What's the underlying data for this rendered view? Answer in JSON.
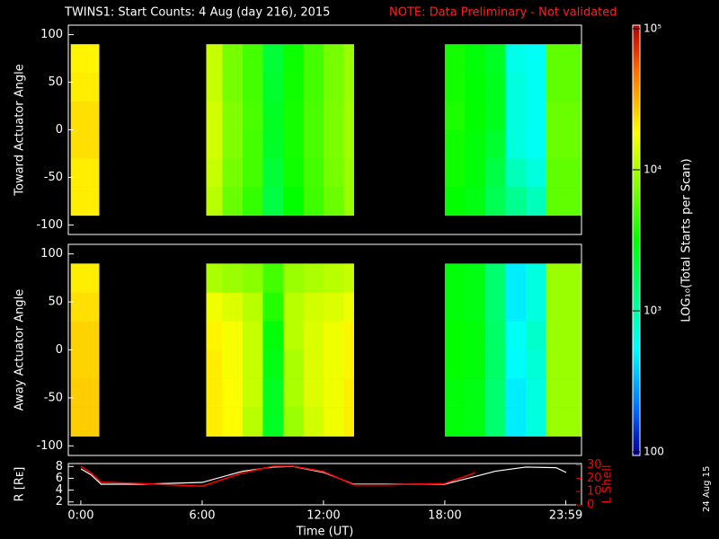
{
  "chart_data": [
    {
      "type": "heatmap",
      "title": "TWINS1: Start Counts:  4 Aug (day 216), 2015",
      "note": "NOTE: Data Preliminary - Not validated",
      "date_stamp": "24 Aug 15",
      "ylabel": "Toward Actuator Angle",
      "xlim": [
        -0.62,
        24.76
      ],
      "ylim": [
        -110,
        110
      ],
      "yticks": [
        -100,
        -50,
        0,
        50,
        100
      ],
      "x_edges": [
        -0.5,
        0.9,
        6.2,
        7,
        8,
        9,
        10,
        11,
        12,
        13,
        13.5,
        18,
        19,
        20,
        21,
        22,
        23,
        24.76
      ],
      "y_edges": [
        -90,
        -60,
        -30,
        0,
        30,
        60,
        90
      ],
      "z": [
        [
          20000,
          null,
          11000,
          6500,
          4500,
          2000,
          3200,
          4800,
          6500,
          9000,
          null,
          3200,
          2800,
          1800,
          1200,
          900,
          6000
        ],
        [
          20000,
          null,
          12000,
          7000,
          5000,
          2200,
          3500,
          5000,
          7000,
          9000,
          null,
          3500,
          3000,
          2000,
          900,
          700,
          6000
        ],
        [
          22000,
          null,
          13000,
          7500,
          5000,
          2400,
          3600,
          5200,
          7200,
          9500,
          null,
          3500,
          3000,
          2300,
          700,
          600,
          6500
        ],
        [
          22000,
          null,
          13000,
          7500,
          5200,
          2500,
          3600,
          5200,
          7200,
          9500,
          null,
          3800,
          3200,
          2600,
          700,
          600,
          6500
        ],
        [
          20000,
          null,
          12000,
          7000,
          5000,
          2300,
          3500,
          5000,
          7000,
          9000,
          null,
          3600,
          3100,
          2600,
          700,
          600,
          6000
        ],
        [
          19000,
          null,
          12000,
          7000,
          5000,
          2200,
          3400,
          5000,
          7000,
          9000,
          null,
          3600,
          3000,
          2500,
          650,
          600,
          6000
        ]
      ],
      "colorbar": {
        "label": "LOG₁₀(Total Starts per Scan)",
        "log": true,
        "clim": [
          100,
          100000
        ],
        "ticks": [
          {
            "value": 100000,
            "label": "10⁵"
          },
          {
            "value": 10000,
            "label": "10⁴"
          },
          {
            "value": 1000,
            "label": "10³"
          },
          100
        ]
      }
    },
    {
      "type": "heatmap",
      "ylabel": "Away Actuator Angle",
      "xlim": [
        -0.62,
        24.76
      ],
      "ylim": [
        -110,
        110
      ],
      "yticks": [
        -100,
        -50,
        0,
        50,
        100
      ],
      "x_edges": [
        -0.5,
        0.9,
        6.2,
        7,
        8,
        9,
        10,
        11,
        12,
        13,
        13.5,
        18,
        19,
        20,
        21,
        22,
        23,
        24.76
      ],
      "y_edges": [
        -90,
        -60,
        -30,
        0,
        30,
        60,
        90
      ],
      "z": [
        [
          25000,
          null,
          20000,
          18000,
          11000,
          2500,
          9000,
          13000,
          16000,
          20000,
          null,
          3000,
          2800,
          1500,
          500,
          700,
          9000
        ],
        [
          25000,
          null,
          20000,
          18000,
          12000,
          2500,
          10000,
          14000,
          16000,
          20000,
          null,
          3000,
          2800,
          1500,
          500,
          700,
          9000
        ],
        [
          24000,
          null,
          20000,
          17000,
          12000,
          2800,
          10000,
          14000,
          16000,
          19000,
          null,
          3200,
          3000,
          1600,
          550,
          750,
          9000
        ],
        [
          24000,
          null,
          19000,
          17000,
          12000,
          3000,
          11000,
          14000,
          16000,
          19000,
          null,
          3200,
          3000,
          1600,
          600,
          800,
          9000
        ],
        [
          22000,
          null,
          16000,
          14000,
          11000,
          4000,
          11000,
          13000,
          14000,
          16000,
          null,
          3000,
          2800,
          1500,
          500,
          700,
          9000
        ],
        [
          20000,
          null,
          10000,
          9000,
          8000,
          5000,
          9000,
          10000,
          11000,
          12000,
          null,
          3000,
          2800,
          1500,
          500,
          700,
          9000
        ]
      ]
    },
    {
      "type": "line",
      "xlabel": "Time (UT)",
      "ylabel": "R [Rᴇ]",
      "y2label": "L Shell",
      "xlim": [
        -0.62,
        24.76
      ],
      "xticks": [
        {
          "value": 0,
          "label": "0:00"
        },
        {
          "value": 6,
          "label": "6:00"
        },
        {
          "value": 12,
          "label": "12:00"
        },
        {
          "value": 18,
          "label": "18:00"
        },
        {
          "value": 23.983,
          "label": "23:59"
        }
      ],
      "ylim": [
        1.5,
        8.5
      ],
      "yticks": [
        2,
        4,
        6,
        8
      ],
      "y2lim": [
        0,
        31
      ],
      "y2ticks": [
        0,
        10,
        20,
        30
      ],
      "x": [
        0,
        0.5,
        1,
        3,
        6,
        8,
        9.5,
        10.5,
        12,
        13.5,
        15,
        18,
        19.5,
        20.5,
        22,
        23.5,
        24
      ],
      "series": [
        {
          "name": "R",
          "color": "#ffffff",
          "values": [
            7.6,
            6.6,
            5,
            5,
            5.3,
            7.2,
            7.9,
            8,
            7,
            5,
            5,
            5,
            6.3,
            7.2,
            7.9,
            7.8,
            7
          ]
        },
        {
          "name": "L Shell",
          "color": "#ff0000",
          "axis": "y2",
          "values": [
            29,
            24,
            17,
            16,
            14,
            24,
            29,
            29,
            25,
            15,
            15,
            16,
            24,
            null,
            null,
            null,
            null
          ]
        }
      ]
    }
  ]
}
